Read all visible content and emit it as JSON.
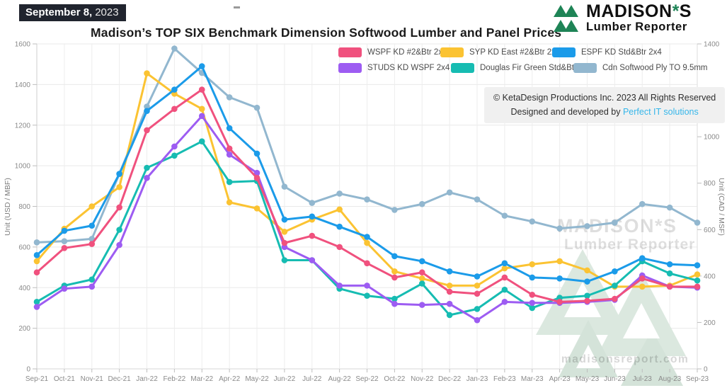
{
  "header": {
    "date_badge": {
      "date": "September 8,",
      "year": "2023"
    },
    "title": "Madison’s TOP SIX Benchmark Dimension Softwood Lumber and Panel Prices",
    "logo": {
      "brand": "MADISON",
      "leaf": "*",
      "brand_s": "S",
      "subtitle": "Lumber Reporter"
    }
  },
  "copyright": {
    "line1": "© KetaDesign Productions Inc. 2023 All Rights Reserved",
    "line2_prefix": "Designed and developed by ",
    "line2_link": "Perfect IT solutions"
  },
  "watermark": {
    "brand": "MADISON*S",
    "subtitle": "Lumber Reporter",
    "site": "madisonsreport.com"
  },
  "chart_data": {
    "type": "line",
    "title": "Madison’s TOP SIX Benchmark Dimension Softwood Lumber and Panel Prices",
    "x": [
      "Sep-21",
      "Oct-21",
      "Nov-21",
      "Dec-21",
      "Jan-22",
      "Feb-22",
      "Mar-22",
      "Apr-22",
      "May-22",
      "Jun-22",
      "Jul-22",
      "Aug-22",
      "Sep-22",
      "Oct-22",
      "Nov-22",
      "Dec-22",
      "Jan-23",
      "Feb-23",
      "Mar-23",
      "Apr-23",
      "May-23",
      "Jun-23",
      "Jul-23",
      "Aug-23",
      "Sep-23"
    ],
    "left_axis": {
      "label": "Unit (USD / MBF)",
      "min": 0,
      "max": 1600,
      "ticks": [
        0,
        200,
        400,
        600,
        800,
        1000,
        1200,
        1400,
        1600
      ]
    },
    "right_axis": {
      "label": "Unit (CAD / MSF)",
      "min": 0,
      "max": 1400,
      "ticks": [
        0,
        200,
        400,
        600,
        800,
        1000,
        1200,
        1400
      ]
    },
    "grid": true,
    "legend_position": "top",
    "series": [
      {
        "name": "WSPF KD #2&Btr 2x4",
        "color": "#f0517e",
        "axis": "left",
        "values": [
          475,
          595,
          615,
          795,
          1175,
          1280,
          1375,
          1085,
          940,
          620,
          655,
          600,
          520,
          450,
          475,
          380,
          370,
          450,
          365,
          330,
          335,
          345,
          445,
          405,
          405
        ]
      },
      {
        "name": "SYP KD East #2&Btr 2x4",
        "color": "#fbc332",
        "axis": "left",
        "values": [
          530,
          690,
          800,
          895,
          1455,
          1355,
          1280,
          820,
          790,
          675,
          735,
          785,
          620,
          480,
          445,
          410,
          410,
          495,
          515,
          530,
          485,
          405,
          405,
          410,
          465
        ]
      },
      {
        "name": "ESPF KD Std&Btr 2x4",
        "color": "#1b9be9",
        "axis": "left",
        "values": [
          560,
          680,
          705,
          960,
          1270,
          1375,
          1490,
          1185,
          1060,
          735,
          750,
          700,
          650,
          555,
          530,
          480,
          455,
          520,
          450,
          445,
          430,
          480,
          545,
          515,
          510
        ]
      },
      {
        "name": "STUDS KD WSPF 2x4 PET",
        "color": "#9d5cf2",
        "axis": "left",
        "values": [
          305,
          395,
          405,
          610,
          940,
          1095,
          1245,
          1055,
          965,
          600,
          535,
          410,
          410,
          320,
          315,
          320,
          240,
          330,
          325,
          325,
          330,
          340,
          460,
          405,
          400
        ]
      },
      {
        "name": "Douglas Fir Green Std&Btr 2x4",
        "color": "#16bcb2",
        "axis": "left",
        "values": [
          330,
          410,
          440,
          685,
          990,
          1050,
          1120,
          920,
          925,
          535,
          535,
          395,
          360,
          345,
          420,
          265,
          295,
          390,
          300,
          350,
          360,
          410,
          530,
          470,
          435
        ]
      },
      {
        "name": "Cdn Softwood Ply TO 9.5mm",
        "color": "#92b7cf",
        "axis": "right",
        "values": [
          545,
          550,
          560,
          840,
          1130,
          1380,
          1275,
          1170,
          1125,
          785,
          715,
          755,
          730,
          685,
          710,
          760,
          730,
          660,
          635,
          605,
          615,
          630,
          710,
          695,
          630
        ]
      }
    ]
  }
}
